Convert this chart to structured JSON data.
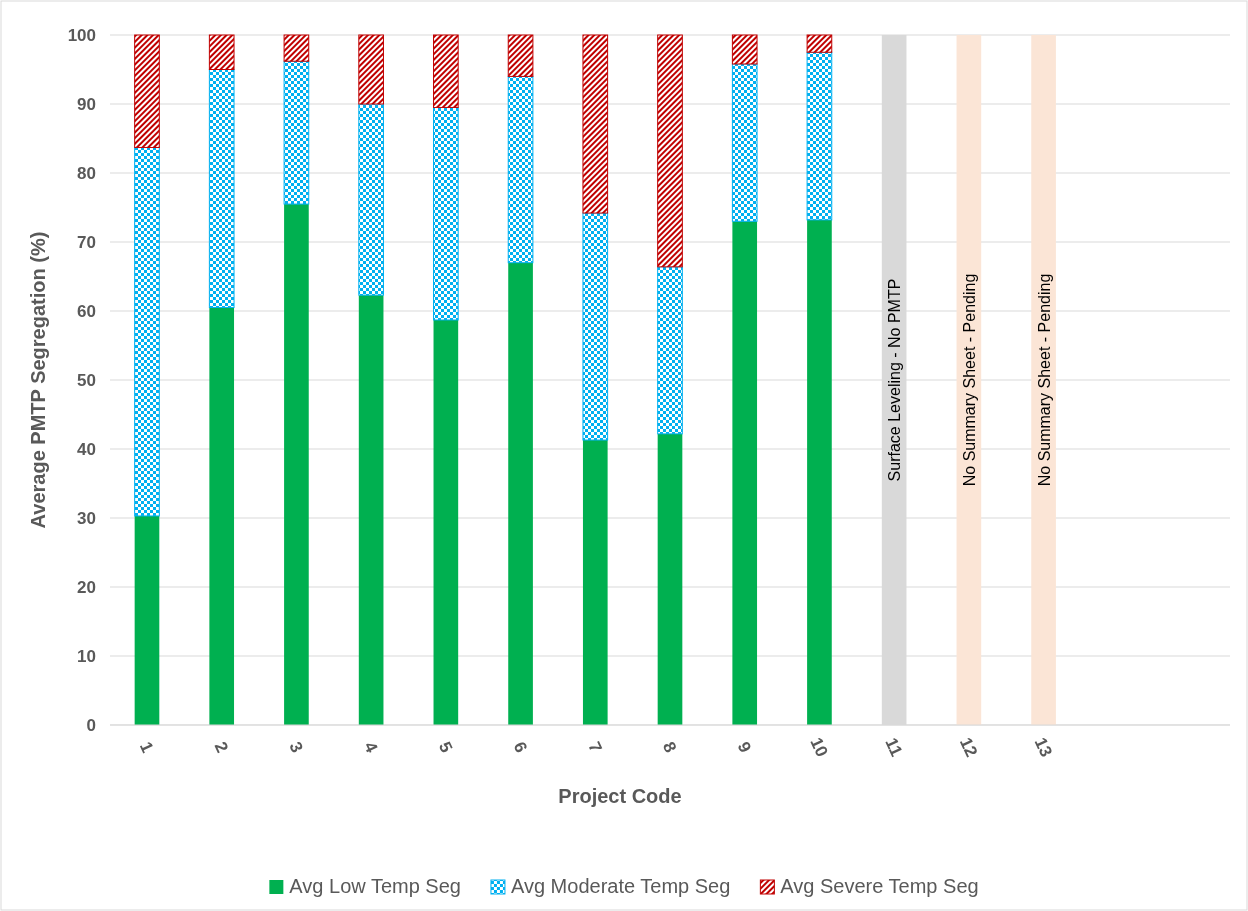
{
  "chart_data": {
    "type": "bar",
    "stacked": true,
    "xlabel": "Project Code",
    "ylabel": "Average PMTP Segregation (%)",
    "categories": [
      "1",
      "2",
      "3",
      "4",
      "5",
      "6",
      "7",
      "8",
      "9",
      "10",
      "11",
      "12",
      "13",
      null,
      null
    ],
    "series": [
      {
        "name": "Avg Low Temp Seg",
        "color": "#00b050",
        "values": [
          30.3,
          60.5,
          75.5,
          62.3,
          58.7,
          67,
          41.3,
          42.2,
          73,
          73.2,
          null,
          null,
          null,
          null,
          null
        ]
      },
      {
        "name": "Avg Moderate Temp Seg",
        "color": "#00b0f0",
        "values": [
          53.4,
          34.5,
          20.7,
          27.7,
          30.8,
          27,
          32.9,
          24.2,
          22.8,
          24.3,
          null,
          null,
          null,
          null,
          null
        ]
      },
      {
        "name": "Avg Severe Temp Seg",
        "color": "#c00000",
        "values": [
          16.3,
          5,
          3.8,
          10,
          10.5,
          6,
          25.8,
          33.6,
          4.2,
          2.5,
          null,
          null,
          null,
          null,
          null
        ]
      },
      {
        "color": "#d9d9d9",
        "values": [
          null,
          null,
          null,
          null,
          null,
          null,
          null,
          null,
          null,
          null,
          100,
          null,
          null,
          null,
          null
        ]
      },
      {
        "color": "#fbe5d6",
        "values": [
          null,
          null,
          null,
          null,
          null,
          null,
          null,
          null,
          null,
          null,
          null,
          100,
          100,
          null,
          null
        ]
      }
    ],
    "ylim": [
      0,
      100
    ],
    "yticks": [
      0,
      10,
      20,
      30,
      40,
      50,
      60,
      70,
      80,
      90,
      100
    ],
    "grid": "y",
    "legend": "bottom",
    "annotations": [
      "Surface Leveling - No PMTP",
      "No Summary Sheet - Pending",
      "No Summary Sheet - Pending"
    ]
  }
}
